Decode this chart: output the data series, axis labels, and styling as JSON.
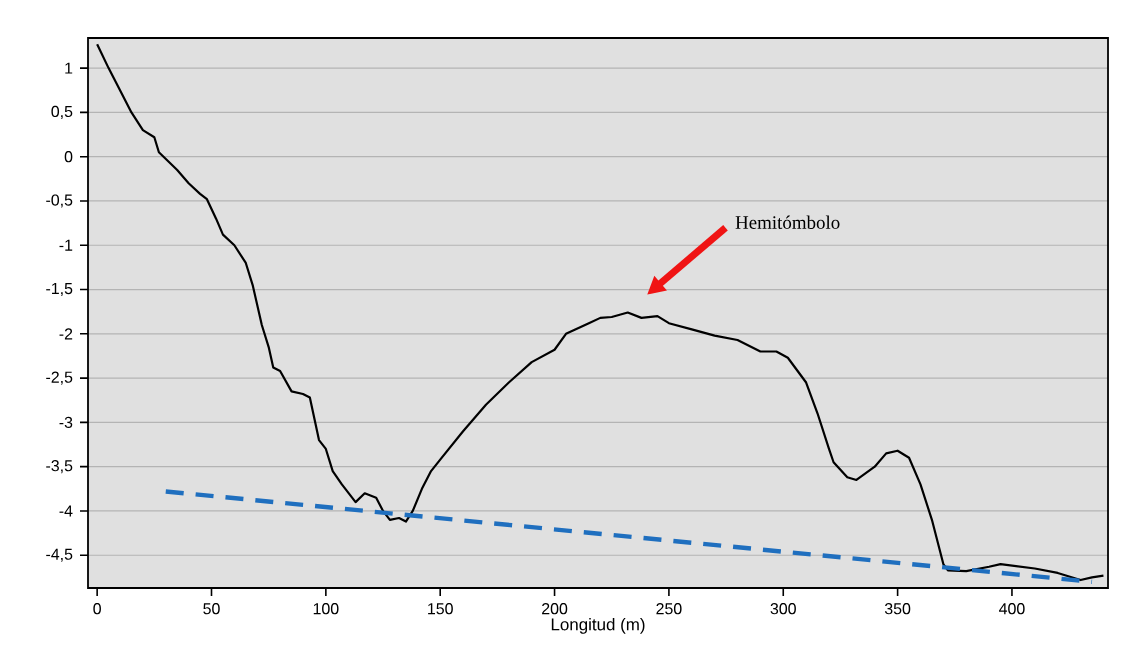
{
  "chart_data": {
    "type": "line",
    "xlabel": "Longitud (m)",
    "xlim": [
      -4,
      442
    ],
    "ylim": [
      -4.87,
      1.34
    ],
    "xticks": [
      0,
      50,
      100,
      150,
      200,
      250,
      300,
      350,
      400
    ],
    "yticks": [
      1,
      {
        "value": 0.5,
        "label": "0,5"
      },
      0,
      {
        "value": -0.5,
        "label": "-0,5"
      },
      -1,
      {
        "value": -1.5,
        "label": "-1,5"
      },
      -2,
      {
        "value": -2.5,
        "label": "-2,5"
      },
      -3,
      {
        "value": -3.5,
        "label": "-3,5"
      },
      -4,
      {
        "value": -4.5,
        "label": "-4,5"
      }
    ],
    "grid": "y",
    "series": [
      {
        "color": "#000000",
        "line_style": "solid",
        "x": [
          0,
          5,
          10,
          15,
          20,
          25,
          27,
          35,
          40,
          45,
          48,
          52,
          55,
          60,
          65,
          68,
          72,
          75,
          77,
          80,
          85,
          90,
          93,
          97,
          100,
          103,
          107,
          113,
          117,
          122,
          125,
          128,
          132,
          135,
          138,
          142,
          146,
          150,
          160,
          170,
          180,
          190,
          200,
          205,
          215,
          220,
          225,
          232,
          238,
          245,
          250,
          260,
          270,
          280,
          290,
          297,
          302,
          310,
          315,
          320,
          322,
          328,
          332,
          340,
          345,
          350,
          355,
          360,
          365,
          370,
          372,
          380,
          390,
          395,
          410,
          420,
          430,
          435,
          440
        ],
        "values": [
          1.27,
          1.0,
          0.75,
          0.5,
          0.3,
          0.22,
          0.05,
          -0.15,
          -0.3,
          -0.42,
          -0.48,
          -0.7,
          -0.88,
          -1.0,
          -1.2,
          -1.45,
          -1.9,
          -2.15,
          -2.38,
          -2.42,
          -2.65,
          -2.68,
          -2.72,
          -3.2,
          -3.3,
          -3.55,
          -3.7,
          -3.9,
          -3.8,
          -3.85,
          -4.0,
          -4.1,
          -4.08,
          -4.12,
          -4.0,
          -3.75,
          -3.55,
          -3.42,
          -3.1,
          -2.8,
          -2.55,
          -2.32,
          -2.18,
          -2.0,
          -1.88,
          -1.82,
          -1.81,
          -1.76,
          -1.82,
          -1.8,
          -1.88,
          -1.95,
          -2.02,
          -2.07,
          -2.2,
          -2.2,
          -2.27,
          -2.55,
          -2.9,
          -3.3,
          -3.45,
          -3.62,
          -3.65,
          -3.5,
          -3.35,
          -3.32,
          -3.4,
          -3.7,
          -4.1,
          -4.6,
          -4.67,
          -4.68,
          -4.63,
          -4.6,
          -4.65,
          -4.7,
          -4.78,
          -4.75,
          -4.73
        ]
      },
      {
        "color": "#1f6fbf",
        "line_style": "dashed",
        "x": [
          30,
          435
        ],
        "values": [
          -3.78,
          -4.8
        ]
      }
    ],
    "annotations": [
      "Hemitómbolo"
    ]
  }
}
